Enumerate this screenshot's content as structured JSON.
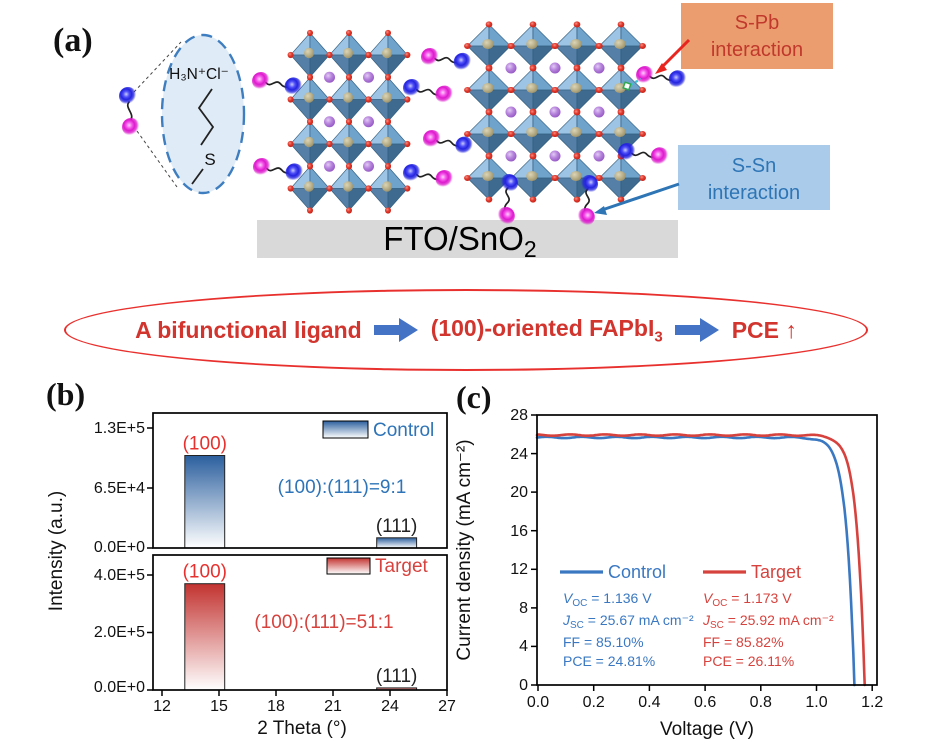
{
  "panel_a": {
    "label": "(a)",
    "molecule_formula": "H₃N⁺Cl⁻",
    "sulfur_label": "S",
    "substrate": {
      "main": "FTO/SnO",
      "sub": "2"
    },
    "spb_box": {
      "line1": "S-Pb",
      "line2": "interaction",
      "bg": "#EC9D70",
      "text_color": "#C0392B"
    },
    "ssn_box": {
      "line1": "S-Sn",
      "line2": "interaction",
      "bg": "#AACBE9",
      "text_color": "#2E75B6"
    },
    "colors": {
      "octahedron_light": "#9DC4E4",
      "octahedron_dark": "#3E6A8F",
      "iodide_red": "#D8281C",
      "cation_purple": "#A86FD4",
      "ligand_blue": "#2424E0",
      "ligand_magenta": "#DD1ACD",
      "substrate_gray": "#D9D9D9",
      "red_arrow": "#E8251F",
      "blue_arrow": "#2E75B6"
    }
  },
  "banner": {
    "step1": "A bifunctional ligand",
    "step2_main": "(100)-oriented FAPbI",
    "step2_sub": "3",
    "step3": "PCE",
    "up_arrow": "↑",
    "text_color": "#D2342E",
    "arrow_color": "#4472C4",
    "border_color": "#E8312E"
  },
  "panel_b_label": "(b)",
  "panel_c_label": "(c)",
  "chart_data": [
    {
      "type": "bar",
      "panel": "b",
      "xlabel": "2 Theta (°)",
      "ylabel": "Intensity (a.u.)",
      "xlim": [
        11.5,
        27
      ],
      "x_ticks": [
        12,
        15,
        18,
        21,
        24,
        27
      ],
      "subplots": [
        {
          "legend": "Control",
          "color": "#2E74B8",
          "bar_gradient_top": "#2B5F9E",
          "ymax": 146000,
          "y_ticks": [
            {
              "label": "1.3E+5",
              "value": 130000
            },
            {
              "label": "6.5E+4",
              "value": 65000
            },
            {
              "label": "0.0E+0",
              "value": 0
            }
          ],
          "annotation": "(100):(111)=9:1",
          "bars": [
            {
              "label": "(100)",
              "label_color": "#E8312E",
              "x_from": 13.2,
              "x_to": 15.3,
              "value": 100000
            },
            {
              "label": "(111)",
              "label_color": "#222222",
              "x_from": 23.3,
              "x_to": 25.4,
              "value": 11000
            }
          ]
        },
        {
          "legend": "Target",
          "color": "#D6433E",
          "bar_gradient_top": "#C23330",
          "ymax": 470000,
          "y_ticks": [
            {
              "label": "4.0E+5",
              "value": 400000
            },
            {
              "label": "2.0E+5",
              "value": 200000
            },
            {
              "label": "0.0E+0",
              "value": 0
            }
          ],
          "annotation": "(100):(111)=51:1",
          "bars": [
            {
              "label": "(100)",
              "label_color": "#E8312E",
              "x_from": 13.2,
              "x_to": 15.3,
              "value": 370000
            },
            {
              "label": "(111)",
              "label_color": "#222222",
              "x_from": 23.3,
              "x_to": 25.4,
              "value": 7300
            }
          ]
        }
      ]
    },
    {
      "type": "line",
      "panel": "c",
      "xlabel": "Voltage (V)",
      "ylabel": "Current density (mA cm⁻²)",
      "xlim": [
        0,
        1.22
      ],
      "ylim": [
        0,
        28
      ],
      "x_ticks": [
        "0.0",
        "0.2",
        "0.4",
        "0.6",
        "0.8",
        "1.0",
        "1.2"
      ],
      "y_ticks": [
        0,
        4,
        8,
        12,
        16,
        20,
        24,
        28
      ],
      "series": [
        {
          "name": "Control",
          "color": "#3A78C2",
          "voc": 1.136,
          "jsc": 25.67,
          "params": [
            {
              "sym": "V",
              "sub": "OC",
              "rest": " = 1.136 V"
            },
            {
              "sym": "J",
              "sub": "SC",
              "rest": " = 25.67 mA cm⁻²"
            },
            {
              "sym": "",
              "sub": "",
              "rest": "FF = 85.10%"
            },
            {
              "sym": "",
              "sub": "",
              "rest": "PCE = 24.81%"
            }
          ]
        },
        {
          "name": "Target",
          "color": "#D6433E",
          "voc": 1.173,
          "jsc": 25.92,
          "params": [
            {
              "sym": "V",
              "sub": "OC",
              "rest": " = 1.173 V"
            },
            {
              "sym": "J",
              "sub": "SC",
              "rest": " = 25.92 mA cm⁻²"
            },
            {
              "sym": "",
              "sub": "",
              "rest": "FF = 85.82%"
            },
            {
              "sym": "",
              "sub": "",
              "rest": "PCE = 26.11%"
            }
          ]
        }
      ]
    }
  ]
}
